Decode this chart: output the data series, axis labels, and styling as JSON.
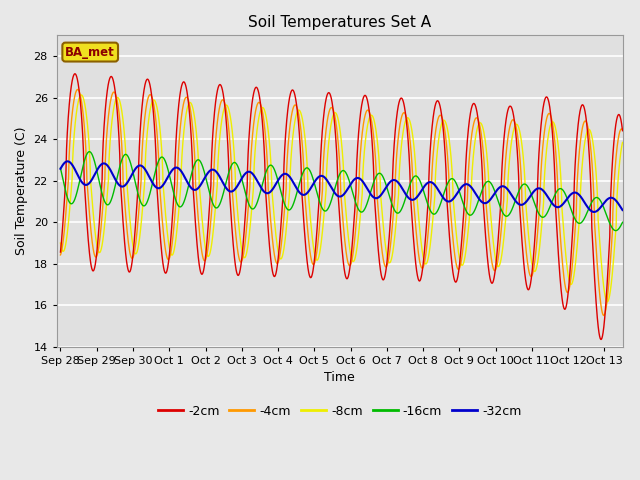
{
  "title": "Soil Temperatures Set A",
  "xlabel": "Time",
  "ylabel": "Soil Temperature (C)",
  "ylim": [
    14,
    29
  ],
  "yticks": [
    14,
    16,
    18,
    20,
    22,
    24,
    26,
    28
  ],
  "fig_bg_color": "#e8e8e8",
  "plot_bg_color": "#e0e0e0",
  "line_colors": {
    "-2cm": "#dd0000",
    "-4cm": "#ff9900",
    "-8cm": "#eeee00",
    "-16cm": "#00bb00",
    "-32cm": "#0000cc"
  },
  "x_tick_labels": [
    "Sep 28",
    "Sep 29",
    "Sep 30",
    "Oct 1",
    "Oct 2",
    "Oct 3",
    "Oct 4",
    "Oct 5",
    "Oct 6",
    "Oct 7",
    "Oct 8",
    "Oct 9",
    "Oct 10",
    "Oct 11",
    "Oct 12",
    "Oct 13"
  ],
  "legend_items": [
    "-2cm",
    "-4cm",
    "-8cm",
    "-16cm",
    "-32cm"
  ]
}
